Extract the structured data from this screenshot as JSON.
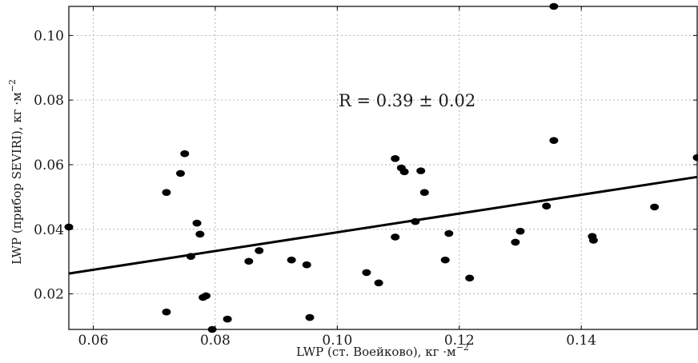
{
  "chart_data": {
    "type": "scatter",
    "xlabel": "LWP (ст. Воейково), кг ·м",
    "xlabel_sup": "−2",
    "ylabel": "LWP (прибор SEVIRI), кг ·м",
    "ylabel_sup": "−2",
    "annotation": "R = 0.39 ± 0.02",
    "xlim": [
      0.056,
      0.159
    ],
    "ylim": [
      0.009,
      0.109
    ],
    "xticks": [
      "0.06",
      "0.08",
      "0.10",
      "0.12",
      "0.14"
    ],
    "xtick_values": [
      0.06,
      0.08,
      0.1,
      0.12,
      0.14
    ],
    "yticks": [
      "0.02",
      "0.04",
      "0.06",
      "0.08",
      "0.10"
    ],
    "ytick_values": [
      0.02,
      0.04,
      0.06,
      0.08,
      0.1
    ],
    "grid": true,
    "regression_line": {
      "x": [
        0.056,
        0.159
      ],
      "y": [
        0.0263,
        0.0562
      ]
    },
    "points": [
      {
        "x": 0.056,
        "y": 0.0407
      },
      {
        "x": 0.072,
        "y": 0.0514
      },
      {
        "x": 0.072,
        "y": 0.0144
      },
      {
        "x": 0.0743,
        "y": 0.0573
      },
      {
        "x": 0.075,
        "y": 0.0634
      },
      {
        "x": 0.076,
        "y": 0.0316
      },
      {
        "x": 0.077,
        "y": 0.0419
      },
      {
        "x": 0.0775,
        "y": 0.0385
      },
      {
        "x": 0.078,
        "y": 0.0189
      },
      {
        "x": 0.0785,
        "y": 0.0194
      },
      {
        "x": 0.0795,
        "y": 0.009
      },
      {
        "x": 0.082,
        "y": 0.0122
      },
      {
        "x": 0.0855,
        "y": 0.0301
      },
      {
        "x": 0.0872,
        "y": 0.0334
      },
      {
        "x": 0.0925,
        "y": 0.0305
      },
      {
        "x": 0.095,
        "y": 0.029
      },
      {
        "x": 0.0955,
        "y": 0.0127
      },
      {
        "x": 0.1048,
        "y": 0.0266
      },
      {
        "x": 0.1068,
        "y": 0.0234
      },
      {
        "x": 0.1095,
        "y": 0.0619
      },
      {
        "x": 0.1095,
        "y": 0.0376
      },
      {
        "x": 0.1105,
        "y": 0.059
      },
      {
        "x": 0.111,
        "y": 0.0578
      },
      {
        "x": 0.1128,
        "y": 0.0424
      },
      {
        "x": 0.1137,
        "y": 0.0581
      },
      {
        "x": 0.1143,
        "y": 0.0514
      },
      {
        "x": 0.1177,
        "y": 0.0305
      },
      {
        "x": 0.1183,
        "y": 0.0387
      },
      {
        "x": 0.1217,
        "y": 0.0249
      },
      {
        "x": 0.1292,
        "y": 0.036
      },
      {
        "x": 0.13,
        "y": 0.0394
      },
      {
        "x": 0.1343,
        "y": 0.0472
      },
      {
        "x": 0.1355,
        "y": 0.0675
      },
      {
        "x": 0.1355,
        "y": 0.109
      },
      {
        "x": 0.1418,
        "y": 0.0378
      },
      {
        "x": 0.142,
        "y": 0.0366
      },
      {
        "x": 0.152,
        "y": 0.0469
      },
      {
        "x": 0.159,
        "y": 0.0622
      }
    ]
  }
}
